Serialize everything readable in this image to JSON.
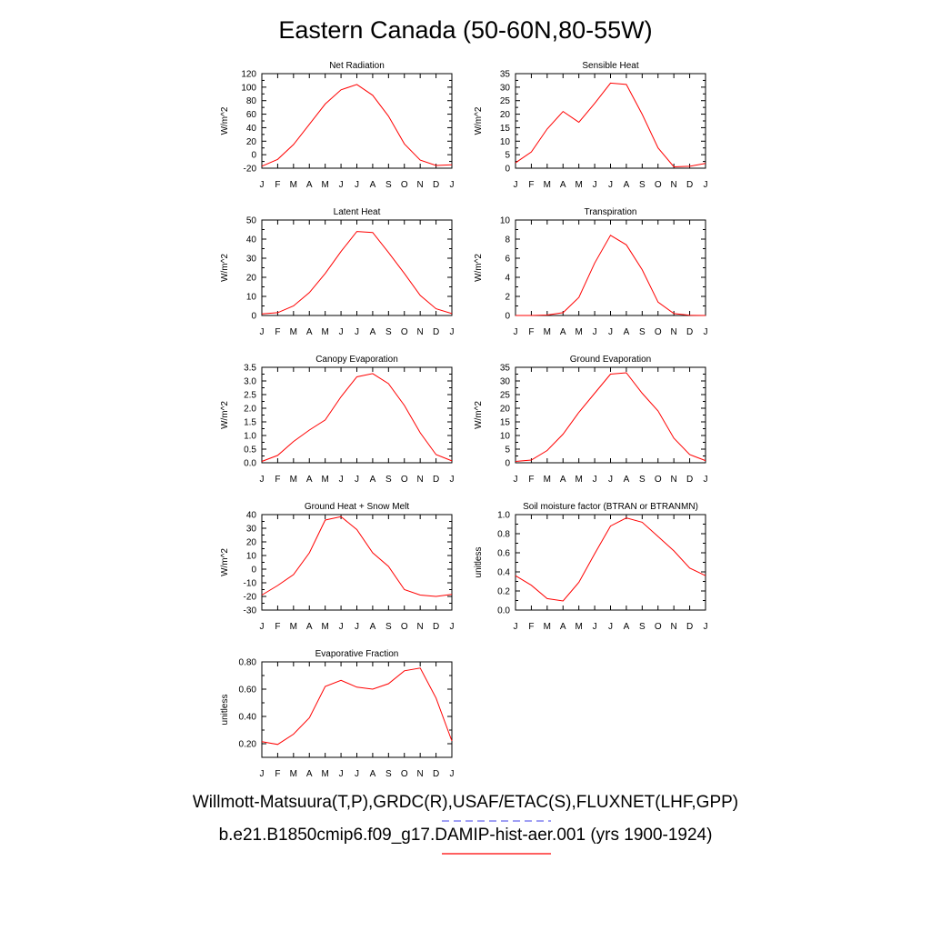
{
  "title": "Eastern Canada (50-60N,80-55W)",
  "month_labels": [
    "J",
    "F",
    "M",
    "A",
    "M",
    "J",
    "J",
    "A",
    "S",
    "O",
    "N",
    "D",
    "J"
  ],
  "legend": {
    "obs_label": "Willmott-Matsuura(T,P),GRDC(R),USAF/ETAC(S),FLUXNET(LHF,GPP)",
    "obs_color": "#6666ee",
    "model_label": "b.e21.B1850cmip6.f09_g17.DAMIP-hist-aer.001 (yrs 1900-1924)",
    "model_color": "#ff0000"
  },
  "chart_data": [
    {
      "type": "line",
      "title": "Net Radiation",
      "ylabel": "W/m^2",
      "ylim": [
        -20,
        120
      ],
      "yticks": [
        -20,
        0,
        20,
        40,
        60,
        80,
        100,
        120
      ],
      "ytick_labels": [
        "-20",
        "0",
        "20",
        "40",
        "60",
        "80",
        "100",
        "120"
      ],
      "x": [
        "J",
        "F",
        "M",
        "A",
        "M",
        "J",
        "J",
        "A",
        "S",
        "O",
        "N",
        "D",
        "J"
      ],
      "series": [
        {
          "values": [
            -17,
            -7,
            15,
            45,
            75,
            96,
            104,
            88,
            57,
            16,
            -8,
            -16,
            -15
          ]
        }
      ]
    },
    {
      "type": "line",
      "title": "Sensible Heat",
      "ylabel": "W/m^2",
      "ylim": [
        0,
        35
      ],
      "yticks": [
        0,
        5,
        10,
        15,
        20,
        25,
        30,
        35
      ],
      "ytick_labels": [
        "0",
        "5",
        "10",
        "15",
        "20",
        "25",
        "30",
        "35"
      ],
      "x": [
        "J",
        "F",
        "M",
        "A",
        "M",
        "J",
        "J",
        "A",
        "S",
        "O",
        "N",
        "D",
        "J"
      ],
      "series": [
        {
          "values": [
            2,
            6,
            14.5,
            21,
            17,
            24,
            31.5,
            31,
            20,
            7.5,
            0.5,
            0.7,
            1.8
          ]
        }
      ]
    },
    {
      "type": "line",
      "title": "Latent Heat",
      "ylabel": "W/m^2",
      "ylim": [
        0,
        50
      ],
      "yticks": [
        0,
        10,
        20,
        30,
        40,
        50
      ],
      "ytick_labels": [
        "0",
        "10",
        "20",
        "30",
        "40",
        "50"
      ],
      "x": [
        "J",
        "F",
        "M",
        "A",
        "M",
        "J",
        "J",
        "A",
        "S",
        "O",
        "N",
        "D",
        "J"
      ],
      "series": [
        {
          "values": [
            0.8,
            1.5,
            5,
            12,
            22,
            33.5,
            44,
            43.5,
            33,
            22,
            10.5,
            3.5,
            1
          ]
        }
      ]
    },
    {
      "type": "line",
      "title": "Transpiration",
      "ylabel": "W/m^2",
      "ylim": [
        0,
        10
      ],
      "yticks": [
        0,
        2,
        4,
        6,
        8,
        10
      ],
      "ytick_labels": [
        "0",
        "2",
        "4",
        "6",
        "8",
        "10"
      ],
      "x": [
        "J",
        "F",
        "M",
        "A",
        "M",
        "J",
        "J",
        "A",
        "S",
        "O",
        "N",
        "D",
        "J"
      ],
      "series": [
        {
          "values": [
            0,
            0,
            0.05,
            0.3,
            1.9,
            5.5,
            8.4,
            7.4,
            4.8,
            1.4,
            0.2,
            0.02,
            0
          ]
        }
      ]
    },
    {
      "type": "line",
      "title": "Canopy Evaporation",
      "ylabel": "W/m^2",
      "ylim": [
        0,
        3.5
      ],
      "yticks": [
        0,
        0.5,
        1,
        1.5,
        2,
        2.5,
        3,
        3.5
      ],
      "ytick_labels": [
        "0.0",
        "0.5",
        "1.0",
        "1.5",
        "2.0",
        "2.5",
        "3.0",
        "3.5"
      ],
      "x": [
        "J",
        "F",
        "M",
        "A",
        "M",
        "J",
        "J",
        "A",
        "S",
        "O",
        "N",
        "D",
        "J"
      ],
      "series": [
        {
          "values": [
            0.05,
            0.27,
            0.78,
            1.2,
            1.57,
            2.42,
            3.15,
            3.27,
            2.9,
            2.1,
            1.1,
            0.3,
            0.07
          ]
        }
      ]
    },
    {
      "type": "line",
      "title": "Ground Evaporation",
      "ylabel": "W/m^2",
      "ylim": [
        0,
        35
      ],
      "yticks": [
        0,
        5,
        10,
        15,
        20,
        25,
        30,
        35
      ],
      "ytick_labels": [
        "0",
        "5",
        "10",
        "15",
        "20",
        "25",
        "30",
        "35"
      ],
      "x": [
        "J",
        "F",
        "M",
        "A",
        "M",
        "J",
        "J",
        "A",
        "S",
        "O",
        "N",
        "D",
        "J"
      ],
      "series": [
        {
          "values": [
            0.5,
            1,
            4.5,
            10.5,
            18.5,
            25.5,
            32.5,
            33,
            25.5,
            19,
            9,
            3,
            0.8
          ]
        }
      ]
    },
    {
      "type": "line",
      "title": "Ground Heat + Snow Melt",
      "ylabel": "W/m^2",
      "ylim": [
        -30,
        40
      ],
      "yticks": [
        -30,
        -20,
        -10,
        0,
        10,
        20,
        30,
        40
      ],
      "ytick_labels": [
        "-30",
        "-20",
        "-10",
        "0",
        "10",
        "20",
        "30",
        "40"
      ],
      "x": [
        "J",
        "F",
        "M",
        "A",
        "M",
        "J",
        "J",
        "A",
        "S",
        "O",
        "N",
        "D",
        "J"
      ],
      "series": [
        {
          "values": [
            -19,
            -12,
            -4,
            12,
            36,
            38.5,
            29,
            12,
            2,
            -15,
            -19,
            -20,
            -18.5
          ]
        }
      ]
    },
    {
      "type": "line",
      "title": "Soil moisture factor (BTRAN or BTRANMN)",
      "ylabel": "unitless",
      "ylim": [
        0,
        1
      ],
      "yticks": [
        0,
        0.2,
        0.4,
        0.6,
        0.8,
        1
      ],
      "ytick_labels": [
        "0.0",
        "0.2",
        "0.4",
        "0.6",
        "0.8",
        "1.0"
      ],
      "x": [
        "J",
        "F",
        "M",
        "A",
        "M",
        "J",
        "J",
        "A",
        "S",
        "O",
        "N",
        "D",
        "J"
      ],
      "series": [
        {
          "values": [
            0.36,
            0.26,
            0.12,
            0.095,
            0.29,
            0.59,
            0.88,
            0.965,
            0.92,
            0.77,
            0.62,
            0.44,
            0.36
          ]
        }
      ]
    },
    {
      "type": "line",
      "title": "Evaporative Fraction",
      "ylabel": "unitless",
      "ylim": [
        0.1,
        0.8
      ],
      "yticks": [
        0.2,
        0.4,
        0.6,
        0.8
      ],
      "ytick_labels": [
        "0.20",
        "0.40",
        "0.60",
        "0.80"
      ],
      "x": [
        "J",
        "F",
        "M",
        "A",
        "M",
        "J",
        "J",
        "A",
        "S",
        "O",
        "N",
        "D",
        "J"
      ],
      "series": [
        {
          "values": [
            0.215,
            0.195,
            0.27,
            0.39,
            0.62,
            0.665,
            0.615,
            0.6,
            0.64,
            0.735,
            0.755,
            0.535,
            0.22
          ]
        }
      ]
    }
  ]
}
